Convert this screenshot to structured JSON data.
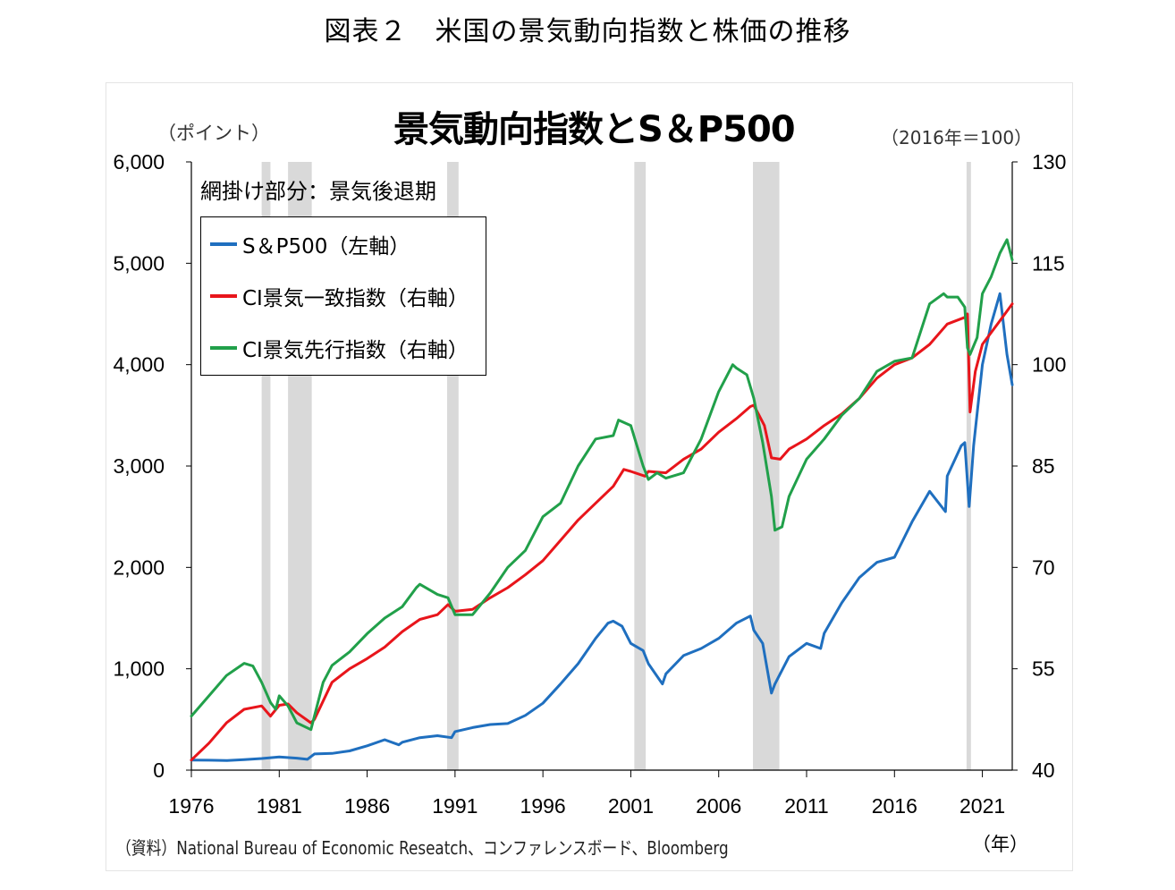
{
  "figure_title": "図表２　米国の景気動向指数と株価の推移",
  "chart_data": {
    "type": "line",
    "title": "景気動向指数とS＆P500",
    "left_axis_unit": "（ポイント）",
    "right_axis_unit": "（2016年＝100）",
    "x_unit": "（年）",
    "shading_note": "網掛け部分：景気後退期",
    "source": "（資料）National Bureau of Economic Reseatch、コンファレンスボード、Bloomberg",
    "xlim": [
      1976,
      2022.7
    ],
    "ylim_left": [
      0,
      6000
    ],
    "ylim_right": [
      40,
      130
    ],
    "x_ticks": [
      "1976",
      "1981",
      "1986",
      "1991",
      "1996",
      "2001",
      "2006",
      "2011",
      "2016",
      "2021"
    ],
    "y_ticks_left": [
      "0",
      "1,000",
      "2,000",
      "3,000",
      "4,000",
      "5,000",
      "6,000"
    ],
    "y_ticks_right": [
      "40",
      "55",
      "70",
      "85",
      "100",
      "115",
      "130"
    ],
    "recessions": [
      [
        1980.0,
        1980.5
      ],
      [
        1981.5,
        1982.85
      ],
      [
        1990.55,
        1991.2
      ],
      [
        2001.2,
        2001.85
      ],
      [
        2007.95,
        2009.45
      ],
      [
        2020.1,
        2020.35
      ]
    ],
    "colors": {
      "sp500": "#1f6fbf",
      "coincident": "#e8151b",
      "leading": "#21a04a",
      "shade": "#d9d9d9"
    },
    "series": [
      {
        "name": "S＆P500（左軸）",
        "axis": "left",
        "color": "#1f6fbf",
        "x": [
          1976,
          1977,
          1978,
          1979,
          1980,
          1980.5,
          1981,
          1982,
          1982.6,
          1983,
          1984,
          1985,
          1986,
          1987,
          1987.8,
          1988,
          1989,
          1990,
          1990.8,
          1991,
          1992,
          1993,
          1994,
          1995,
          1996,
          1997,
          1998,
          1999,
          1999.7,
          2000,
          2000.5,
          2001,
          2001.7,
          2002,
          2002.8,
          2003,
          2004,
          2005,
          2006,
          2007,
          2007.8,
          2008,
          2008.5,
          2009,
          2009.2,
          2010,
          2011,
          2011.8,
          2012,
          2013,
          2014,
          2015,
          2016,
          2017,
          2018,
          2018.9,
          2019,
          2019.8,
          2020,
          2020.25,
          2020.5,
          2021,
          2021.5,
          2022,
          2022.4,
          2022.7
        ],
        "values": [
          100,
          98,
          94,
          103,
          115,
          123,
          130,
          118,
          107,
          160,
          165,
          190,
          240,
          300,
          250,
          275,
          320,
          340,
          320,
          380,
          420,
          450,
          460,
          540,
          660,
          850,
          1050,
          1300,
          1450,
          1470,
          1420,
          1250,
          1180,
          1050,
          850,
          950,
          1130,
          1200,
          1300,
          1450,
          1520,
          1380,
          1250,
          760,
          850,
          1120,
          1250,
          1200,
          1350,
          1650,
          1900,
          2050,
          2100,
          2450,
          2750,
          2550,
          2900,
          3200,
          3230,
          2600,
          3200,
          4000,
          4400,
          4700,
          4100,
          3800
        ]
      },
      {
        "name": "CI景気一致指数（右軸）",
        "axis": "right",
        "color": "#e8151b",
        "x": [
          1976,
          1977,
          1978,
          1979,
          1980,
          1980.5,
          1981,
          1981.5,
          1982,
          1982.8,
          1983,
          1984,
          1985,
          1986,
          1987,
          1988,
          1989,
          1990,
          1990.6,
          1991,
          1992,
          1993,
          1994,
          1995,
          1996,
          1997,
          1998,
          1999,
          2000,
          2000.6,
          2001,
          2001.8,
          2002,
          2003,
          2004,
          2005,
          2006,
          2007,
          2007.8,
          2008,
          2008.6,
          2009,
          2009.5,
          2010,
          2011,
          2012,
          2013,
          2014,
          2015,
          2016,
          2017,
          2018,
          2019,
          2020,
          2020.15,
          2020.3,
          2020.6,
          2021,
          2022,
          2022.7
        ],
        "values": [
          41.5,
          44,
          47,
          49,
          49.5,
          48,
          49.6,
          49.8,
          48.5,
          47,
          47.5,
          53,
          55,
          56.5,
          58.2,
          60.5,
          62.3,
          63,
          64.5,
          63.5,
          63.8,
          65.5,
          67,
          68.9,
          71,
          74,
          77,
          79.5,
          82,
          84.5,
          84.2,
          83.5,
          84.2,
          84,
          86,
          87.5,
          90,
          92,
          93.8,
          94,
          91,
          86.2,
          86,
          87.5,
          89,
          91,
          92.7,
          95,
          98,
          100,
          101,
          103,
          106,
          107,
          107.5,
          93,
          99,
          103,
          106.5,
          109
        ]
      },
      {
        "name": "CI景気先行指数（右軸）",
        "axis": "right",
        "color": "#21a04a",
        "x": [
          1976,
          1977,
          1978,
          1979,
          1979.5,
          1980,
          1980.5,
          1980.8,
          1981,
          1981.5,
          1982,
          1982.8,
          1983,
          1983.5,
          1984,
          1985,
          1986,
          1987,
          1988,
          1988.8,
          1989,
          1990,
          1990.6,
          1991,
          1992,
          1993,
          1994,
          1995,
          1996,
          1997,
          1998,
          1999,
          2000,
          2000.3,
          2001,
          2001.7,
          2002,
          2002.5,
          2003,
          2004,
          2005,
          2006,
          2006.8,
          2007,
          2007.6,
          2008,
          2008.5,
          2009,
          2009.2,
          2009.6,
          2010,
          2011,
          2012,
          2013,
          2014,
          2015,
          2016,
          2017,
          2018,
          2018.8,
          2019,
          2019.6,
          2020,
          2020.15,
          2020.3,
          2020.7,
          2021,
          2021.5,
          2022,
          2022.4,
          2022.7
        ],
        "values": [
          48,
          51,
          54,
          55.8,
          55.4,
          53,
          50,
          49,
          51,
          49.5,
          47,
          46,
          48,
          53,
          55.5,
          57.5,
          60.2,
          62.5,
          64.2,
          67,
          67.5,
          66,
          65.5,
          63,
          63,
          66.2,
          70,
          72.5,
          77.5,
          79.5,
          85,
          89,
          89.5,
          91.8,
          91,
          85,
          83,
          84,
          83.2,
          84,
          89,
          96,
          100,
          99.5,
          98.5,
          95,
          88.5,
          80.5,
          75.5,
          76,
          80.5,
          86,
          89,
          92.5,
          95,
          99,
          100.5,
          101,
          109,
          110.5,
          110,
          110,
          108.5,
          102.5,
          101.5,
          104,
          110.5,
          113,
          116.5,
          118.5,
          115.5
        ]
      }
    ]
  }
}
